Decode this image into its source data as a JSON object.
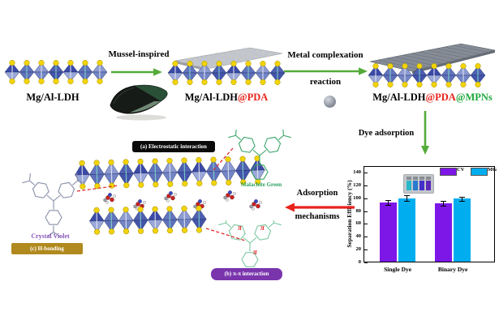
{
  "scheme": {
    "ldh_label": "Mg/Al-LDH",
    "arrow_mussel": "Mussel-inspired",
    "pda_label_base": "Mg/Al-LDH",
    "pda_label_suffix": "@PDA",
    "arrow_metal_line1": "Metal complexation",
    "arrow_metal_line2": "reaction",
    "mpn_label_base": "Mg/Al-LDH",
    "mpn_label_pda": "@PDA",
    "mpn_label_mpn": "@MPNs",
    "arrow_dye": "Dye adsorption",
    "arrow_mech_line1": "Adsorption",
    "arrow_mech_line2": "mechanisms"
  },
  "mechanisms": {
    "badge_a": "(a) Electrostatic interaction",
    "badge_b": "(b) π-π interaction",
    "badge_c": "(c) H-bonding",
    "crystal_violet": "Crystal Violet",
    "malachite_green": "Malachite Green",
    "pi": "π"
  },
  "chart_data": {
    "type": "bar",
    "title": "",
    "categories": [
      "Single Dye",
      "Binary Dye"
    ],
    "series": [
      {
        "name": "CV",
        "color": "#7d17e8",
        "values": [
          93,
          92
        ],
        "errors": [
          4,
          4
        ]
      },
      {
        "name": "MG",
        "color": "#00aef0",
        "values": [
          100,
          99
        ],
        "errors": [
          4,
          3
        ]
      }
    ],
    "xlabel": "",
    "ylabel": "Separation Efficiency (%)",
    "ylim": [
      0,
      150
    ],
    "yticks": [
      0,
      20,
      40,
      60,
      80,
      100,
      120,
      140
    ],
    "legend_position": "top-right",
    "grid": false
  },
  "colors": {
    "arrow_green": "#55ab3a",
    "arrow_red": "#e8231c",
    "pda_red": "#e8231c",
    "mpn_green": "#1fa83c",
    "badge_a_bg": "#0a0a0a",
    "badge_b_bg": "#7a35ad",
    "badge_c_bg": "#b08a1e",
    "cv_text": "#8855bb",
    "mg_text": "#2aa060"
  }
}
